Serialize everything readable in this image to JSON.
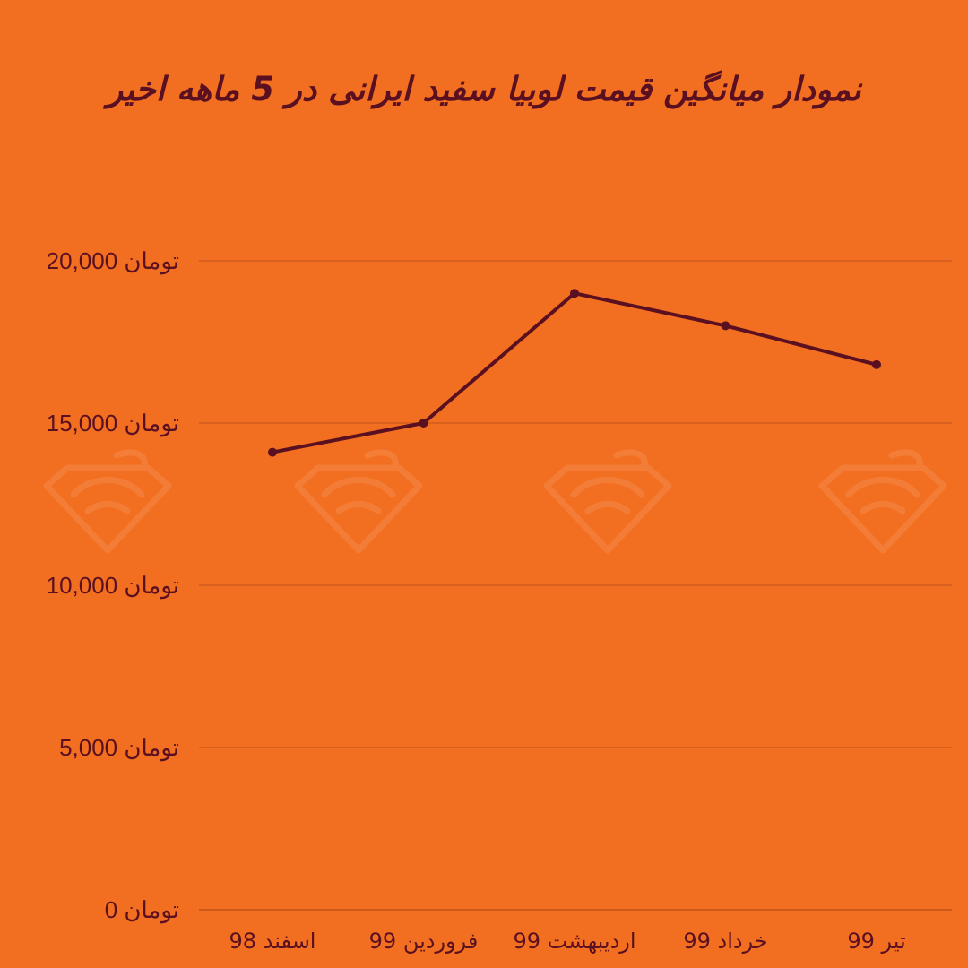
{
  "chart_data": {
    "type": "line",
    "title": "نمودار میانگین قیمت لوبیا سفید ایرانی در 5 ماهه اخیر",
    "categories": [
      "اسفند 98",
      "فروردین 99",
      "اردیبهشت 99",
      "خرداد 99",
      "تیر 99"
    ],
    "series": [
      {
        "values": [
          14100,
          15000,
          19000,
          18000,
          16800
        ]
      }
    ],
    "ylim": [
      0,
      20000
    ],
    "yticks": [
      0,
      5000,
      10000,
      15000,
      20000
    ],
    "ytick_labels": [
      "0 تومان",
      "5,000 تومان",
      "10,000 تومان",
      "15,000 تومان",
      "20,000 تومان"
    ],
    "grid": true,
    "colors": {
      "background": "#F26F21",
      "line": "#5A1020",
      "grid": "#C0501A",
      "watermark": "#F5894A"
    }
  },
  "watermark_icon": "logo-watermark-icon"
}
